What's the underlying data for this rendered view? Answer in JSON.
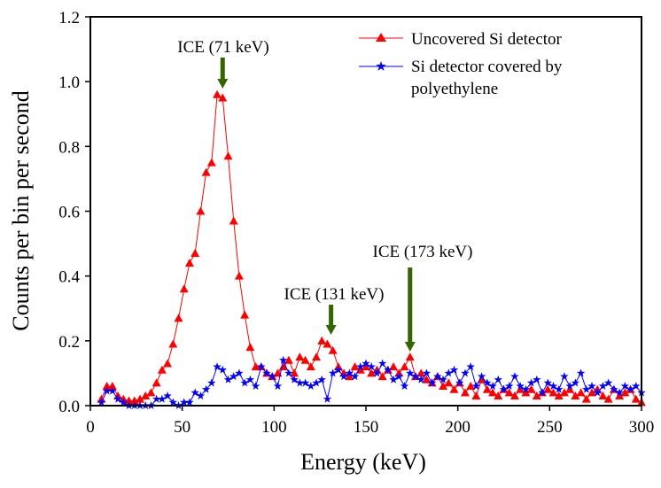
{
  "chart_data": {
    "type": "line",
    "xlabel": "Energy (keV)",
    "ylabel": "Counts per bin per second",
    "xlim": [
      0,
      300
    ],
    "ylim": [
      0,
      1.2
    ],
    "xticks": [
      "0",
      "50",
      "100",
      "150",
      "200",
      "250",
      "300"
    ],
    "yticks": [
      "0.0",
      "0.2",
      "0.4",
      "0.6",
      "0.8",
      "1.0",
      "1.2"
    ],
    "grid": false,
    "legend_placement": "top-right",
    "x": [
      6,
      9,
      12,
      15,
      18,
      21,
      24,
      27,
      30,
      33,
      36,
      39,
      42,
      45,
      48,
      51,
      54,
      57,
      60,
      63,
      66,
      69,
      72,
      75,
      78,
      81,
      84,
      87,
      90,
      93,
      96,
      99,
      102,
      105,
      108,
      111,
      114,
      117,
      120,
      123,
      126,
      129,
      132,
      135,
      138,
      141,
      144,
      147,
      150,
      153,
      156,
      159,
      162,
      165,
      168,
      171,
      174,
      177,
      180,
      183,
      186,
      189,
      192,
      195,
      198,
      201,
      204,
      207,
      210,
      213,
      216,
      219,
      222,
      225,
      228,
      231,
      234,
      237,
      240,
      243,
      246,
      249,
      252,
      255,
      258,
      261,
      264,
      267,
      270,
      273,
      276,
      279,
      282,
      285,
      288,
      291,
      294,
      297,
      300
    ],
    "series": [
      {
        "name": "Uncovered Si detector",
        "color": "#ff0000",
        "marker": "triangle",
        "values": [
          0.02,
          0.06,
          0.06,
          0.03,
          0.02,
          0.015,
          0.015,
          0.02,
          0.03,
          0.04,
          0.07,
          0.11,
          0.13,
          0.19,
          0.27,
          0.36,
          0.44,
          0.47,
          0.6,
          0.72,
          0.75,
          0.96,
          0.95,
          0.77,
          0.57,
          0.4,
          0.28,
          0.18,
          0.12,
          0.12,
          0.1,
          0.09,
          0.1,
          0.12,
          0.14,
          0.1,
          0.15,
          0.14,
          0.12,
          0.15,
          0.2,
          0.19,
          0.17,
          0.12,
          0.1,
          0.09,
          0.12,
          0.11,
          0.12,
          0.1,
          0.11,
          0.09,
          0.11,
          0.12,
          0.1,
          0.12,
          0.15,
          0.09,
          0.1,
          0.08,
          0.07,
          0.09,
          0.06,
          0.07,
          0.05,
          0.07,
          0.04,
          0.06,
          0.03,
          0.08,
          0.05,
          0.04,
          0.03,
          0.05,
          0.04,
          0.03,
          0.05,
          0.04,
          0.05,
          0.03,
          0.04,
          0.05,
          0.04,
          0.03,
          0.04,
          0.05,
          0.03,
          0.04,
          0.02,
          0.04,
          0.05,
          0.03,
          0.02,
          0.05,
          0.03,
          0.04,
          0.05,
          0.02,
          0.01
        ]
      },
      {
        "name": "Si detector covered by polyethylene",
        "color": "#0000ff",
        "marker": "star",
        "values": [
          0.01,
          0.045,
          0.045,
          0.02,
          0.01,
          0.0,
          0.0,
          0.0,
          0.0,
          0.0,
          0.02,
          0.02,
          0.03,
          0.01,
          0.0,
          0.01,
          0.01,
          0.04,
          0.03,
          0.05,
          0.07,
          0.12,
          0.11,
          0.08,
          0.09,
          0.1,
          0.07,
          0.08,
          0.06,
          0.12,
          0.1,
          0.09,
          0.06,
          0.14,
          0.1,
          0.08,
          0.07,
          0.07,
          0.06,
          0.07,
          0.08,
          0.02,
          0.1,
          0.11,
          0.09,
          0.1,
          0.09,
          0.12,
          0.13,
          0.12,
          0.1,
          0.13,
          0.11,
          0.08,
          0.09,
          0.06,
          0.1,
          0.09,
          0.08,
          0.1,
          0.07,
          0.09,
          0.08,
          0.1,
          0.11,
          0.07,
          0.1,
          0.12,
          0.06,
          0.09,
          0.07,
          0.06,
          0.08,
          0.05,
          0.06,
          0.09,
          0.06,
          0.05,
          0.07,
          0.08,
          0.04,
          0.07,
          0.06,
          0.05,
          0.09,
          0.06,
          0.07,
          0.1,
          0.05,
          0.06,
          0.04,
          0.06,
          0.07,
          0.05,
          0.04,
          0.06,
          0.05,
          0.06,
          0.04
        ]
      }
    ],
    "legend": {
      "line1": "Uncovered Si detector",
      "line2a": "Si detector covered by",
      "line2b": "polyethylene"
    },
    "annotations": [
      {
        "text": "ICE (71 keV)",
        "arrow_x": 72,
        "color": "#336600"
      },
      {
        "text": "ICE (131 keV)",
        "arrow_x": 131,
        "color": "#336600"
      },
      {
        "text": "ICE (173 keV)",
        "arrow_x": 174,
        "color": "#336600"
      }
    ]
  }
}
